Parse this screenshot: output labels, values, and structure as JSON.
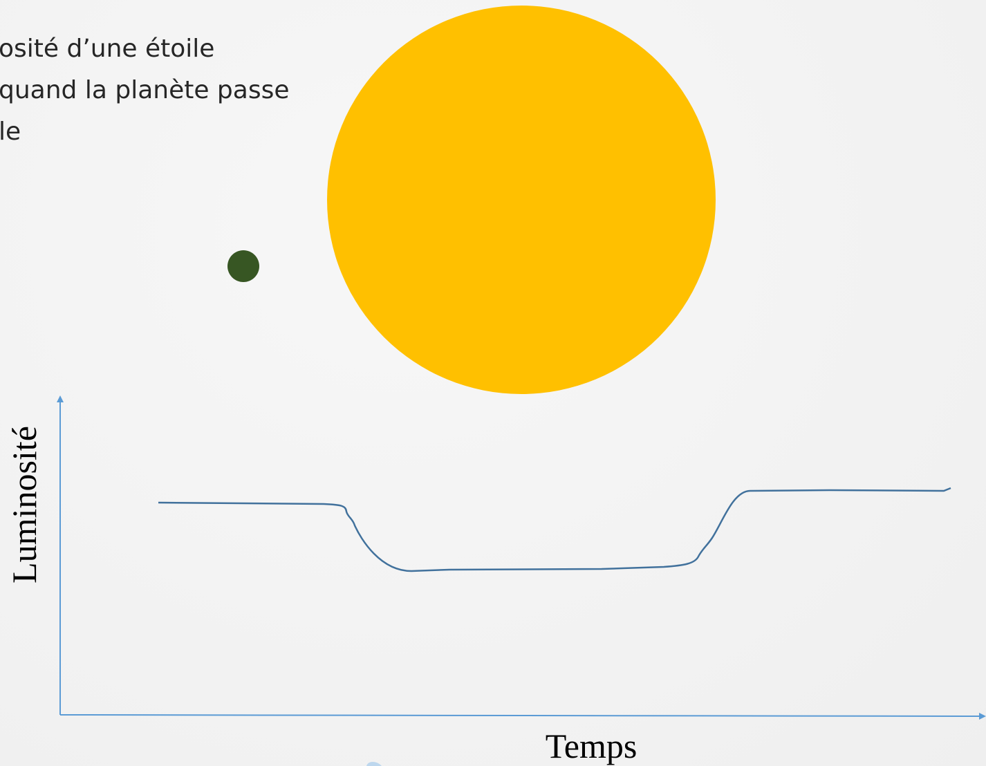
{
  "caption": {
    "lines": [
      "osité d’une étoile",
      "quand la planète passe",
      "le"
    ]
  },
  "graph": {
    "y_label": "Luminosité",
    "x_label": "Temps"
  }
}
